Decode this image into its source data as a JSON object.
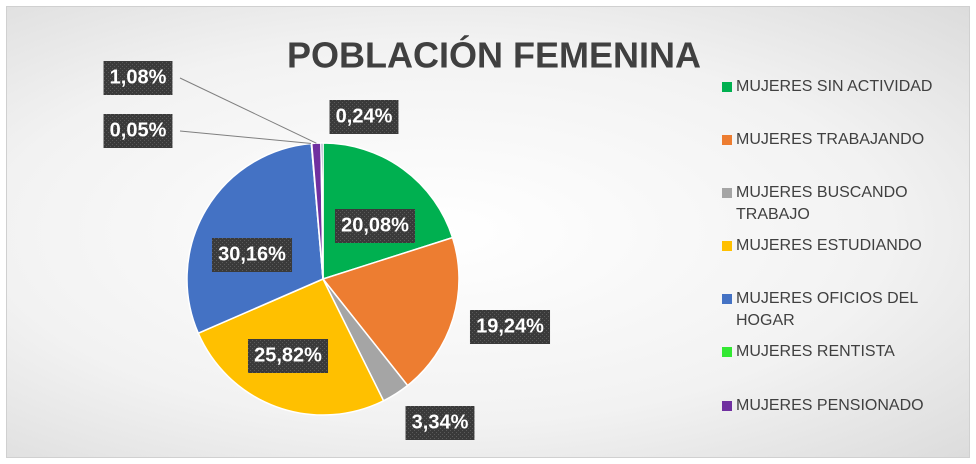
{
  "chart_data": {
    "type": "pie",
    "title": "POBLACIÓN FEMENINA",
    "categories": [
      "MUJERES SIN ACTIVIDAD",
      "MUJERES TRABAJANDO",
      "MUJERES BUSCANDO TRABAJO",
      "MUJERES ESTUDIANDO",
      "MUJERES OFICIOS DEL HOGAR",
      "MUJERES RENTISTA",
      "MUJERES PENSIONADO",
      null
    ],
    "values": [
      20.08,
      19.24,
      3.34,
      25.82,
      30.16,
      0.05,
      1.08,
      0.24
    ],
    "value_labels": [
      "20,08%",
      "19,24%",
      "3,34%",
      "25,82%",
      "30,16%",
      "0,05%",
      "1,08%",
      "0,24%"
    ],
    "colors": [
      "#00b050",
      "#ed7d31",
      "#a5a5a5",
      "#ffc000",
      "#4472c4",
      "#33e833",
      "#7030a0",
      "#264478"
    ],
    "legend": "right"
  }
}
